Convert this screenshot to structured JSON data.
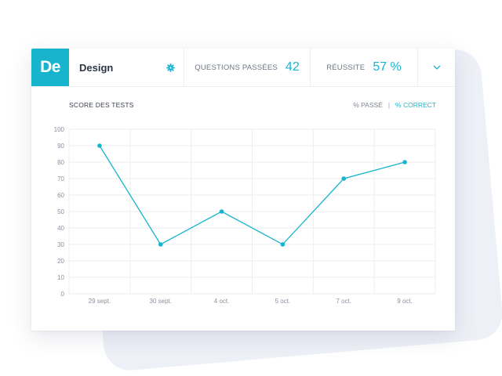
{
  "header": {
    "badge": "De",
    "title": "Design",
    "questions_label": "QUESTIONS PASSÉES",
    "questions_value": "42",
    "success_label": "RÉUSSITE",
    "success_value": "57 %"
  },
  "chart": {
    "title": "SCORE DES TESTS",
    "toggle_passe": "% PASSÉ",
    "toggle_sep": "|",
    "toggle_correct": "% CORRECT"
  },
  "colors": {
    "accent": "#18b4cd",
    "text_dark": "#2f3545",
    "background_shape": "#eef0f7"
  },
  "icons": {
    "gear": "gear-icon",
    "dropdown": "chevron-down-icon"
  },
  "chart_data": {
    "type": "line",
    "title": "SCORE DES TESTS",
    "categories": [
      "29 sept.",
      "30 sept.",
      "4 oct.",
      "5 oct.",
      "7 oct.",
      "9 oct."
    ],
    "series": [
      {
        "name": "% CORRECT",
        "values": [
          90,
          30,
          50,
          30,
          70,
          80
        ]
      }
    ],
    "yticks": [
      0,
      10,
      20,
      30,
      40,
      50,
      60,
      70,
      80,
      90,
      100
    ],
    "ylim": [
      0,
      100
    ],
    "grid": true,
    "xlabel": "",
    "ylabel": ""
  }
}
